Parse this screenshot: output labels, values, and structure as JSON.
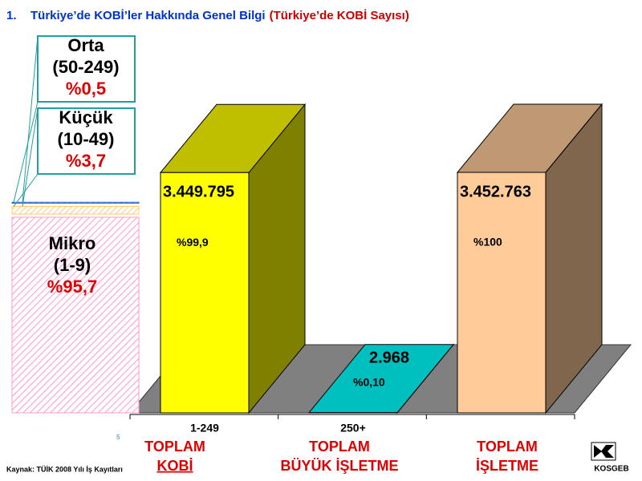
{
  "chart_data": {
    "type": "bar",
    "number": "1.",
    "title": "Türkiye’de KOBİ’ler Hakkında Genel Bilgi",
    "subtitle": "(Türkiye’de KOBİ Sayısı)",
    "categories": [
      "1-249",
      "250+",
      null
    ],
    "group_labels": [
      [
        "TOPLAM",
        "KOBİ"
      ],
      [
        "TOPLAM",
        "BÜYÜK İŞLETME"
      ],
      [
        "TOPLAM",
        "İŞLETME"
      ]
    ],
    "values": [
      3449795,
      2968,
      3452763
    ],
    "value_labels": [
      "3.449.795",
      "2.968",
      "3.452.763"
    ],
    "shares": [
      99.9,
      0.1,
      100
    ],
    "share_labels": [
      "%99,9",
      "%0,10",
      "%100"
    ],
    "colors": [
      "#ffff00",
      "#00ffff",
      "#ffcc99"
    ],
    "breakdown": [
      {
        "name": "Mikro",
        "range": "(1-9)",
        "value": 95.7,
        "label": "%95,7",
        "color": "#ff99cc"
      },
      {
        "name": "Küçük",
        "range": "(10-49)",
        "value": 3.7,
        "label": "%3,7",
        "color": "#ffcc66"
      },
      {
        "name": "Orta",
        "range": "(50-249)",
        "value": 0.5,
        "label": "%0,5",
        "color": "#3366cc"
      }
    ],
    "source": "Kaynak: TÜİK 2008 Yılı İş Kayıtları",
    "page": "5",
    "logo": "KOSGEB"
  }
}
